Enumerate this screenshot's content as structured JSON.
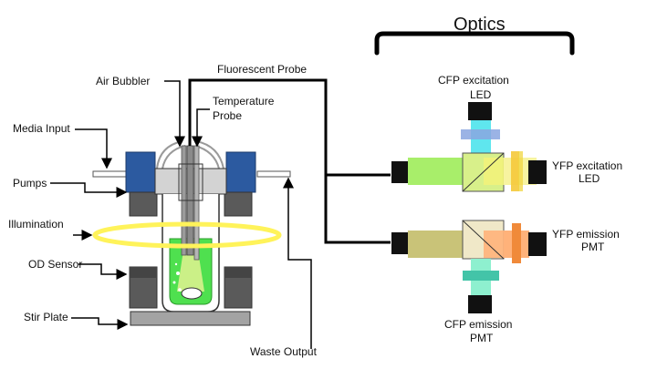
{
  "optics_title": "Optics",
  "labels": {
    "fluorescent_probe": "Fluorescent Probe",
    "air_bubbler": "Air Bubbler",
    "temperature_probe_line1": "Temperature",
    "temperature_probe_line2": "Probe",
    "media_input": "Media Input",
    "pumps": "Pumps",
    "illumination": "Illumination",
    "od_sensor": "OD Sensor",
    "stir_plate": "Stir Plate",
    "waste_output": "Waste Output",
    "cfp_excitation_line1": "CFP excitation",
    "cfp_excitation_line2": "LED",
    "yfp_excitation_line1": "YFP excitation",
    "yfp_excitation_line2": "LED",
    "yfp_emission_line1": "YFP emission",
    "yfp_emission_line2": "PMT",
    "cfp_emission_line1": "CFP emission",
    "cfp_emission_line2": "PMT"
  },
  "colors": {
    "pump_blue": "#2c5aa0",
    "illumination_ring": "#fff35a",
    "culture_green": "#4fe04f",
    "cfp_cyan": "#5fe6ee",
    "cfp_filter": "#8aa6e0",
    "yfp_green_beam": "#a8ee6a",
    "yfp_excitation_filter": "#f5c93a",
    "emission_beam": "#c9c378",
    "emission_orange": "#ffb27a",
    "yfp_emission_filter": "#f08a3a",
    "cfp_emission_filter": "#43c4a8",
    "cfp_emission_beam": "#8ef0cf",
    "optics_dark": "#111111",
    "housing_gray": "#d3d3d3"
  }
}
